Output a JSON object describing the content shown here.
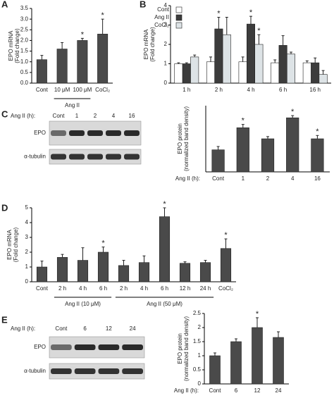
{
  "chart_data": [
    {
      "type": "bar",
      "panel": "A",
      "ylabel": [
        "EPO mRNA",
        "(Fold change)"
      ],
      "categories": [
        "Cont",
        "10 μM",
        "100 μM",
        "CoCl₂"
      ],
      "values": [
        1.1,
        1.6,
        2.0,
        2.3
      ],
      "errors": [
        0.2,
        0.3,
        0.1,
        0.7
      ],
      "color": "#4a4a4a",
      "ylim": [
        0,
        3.5
      ],
      "yticks": [
        {
          "value": 0,
          "label": "0.0"
        },
        0.5,
        {
          "value": 1,
          "label": "1.0"
        },
        1.5,
        {
          "value": 2,
          "label": "2.0"
        },
        2.5,
        {
          "value": 3,
          "label": "3.0"
        },
        3.5
      ],
      "groups": [
        {
          "label": "Ang II",
          "start": 1,
          "end": 2
        }
      ],
      "annotations": [
        {
          "text": "*",
          "category": 2
        },
        {
          "text": "*",
          "category": 3
        }
      ]
    },
    {
      "type": "bar",
      "panel": "B",
      "ylabel": [
        "EPO mRNA",
        "(Fold change)"
      ],
      "categories": [
        "1 h",
        "2 h",
        "4 h",
        "6 h",
        "16 h"
      ],
      "series": [
        {
          "name": "Cont",
          "color": "#ffffff",
          "values": [
            1.0,
            1.1,
            1.1,
            1.05,
            1.05
          ],
          "errors": [
            0.05,
            0.25,
            0.25,
            0.15,
            0.1
          ]
        },
        {
          "name": "Ang II",
          "color": "#3c3c3c",
          "values": [
            1.0,
            2.8,
            3.05,
            1.95,
            1.05
          ],
          "errors": [
            0.05,
            0.6,
            0.4,
            0.5,
            0.25
          ]
        },
        {
          "name": "CoCl₂",
          "color": "#dde3e6",
          "values": [
            1.35,
            2.5,
            2.0,
            1.5,
            0.45
          ],
          "errors": [
            0.1,
            0.9,
            0.5,
            0.1,
            0.2
          ]
        }
      ],
      "ylim": [
        0,
        4
      ],
      "yticks": [
        0,
        1,
        2,
        3,
        4
      ],
      "legend": "top-left",
      "annotations": [
        {
          "text": "*",
          "category": 1,
          "series": 1
        },
        {
          "text": "*",
          "category": 2,
          "series": 1
        },
        {
          "text": "*",
          "category": 2,
          "series": 2
        }
      ]
    },
    {
      "type": "bar",
      "panel": "C",
      "ylabel": [
        "EPO protein",
        "(normalized band density)"
      ],
      "blot": {
        "header": "Ang II (h):",
        "lanes": [
          "Cont",
          "1",
          "2",
          "4",
          "16"
        ],
        "rows": [
          "EPO",
          "α-tubulin"
        ]
      },
      "x_prefix": "Ang II (h):",
      "categories": [
        "Cont",
        "1",
        "2",
        "4",
        "16"
      ],
      "values": [
        1.0,
        2.0,
        1.5,
        2.45,
        1.5
      ],
      "errors": [
        0.15,
        0.15,
        0.1,
        0.1,
        0.15
      ],
      "color": "#4a4a4a",
      "ylim": [
        0,
        3
      ],
      "annotations": [
        {
          "text": "*",
          "category": 1
        },
        {
          "text": "*",
          "category": 3
        },
        {
          "text": "*",
          "category": 4
        }
      ]
    },
    {
      "type": "bar",
      "panel": "D",
      "ylabel": [
        "EPO mRNA",
        "(Fold change)"
      ],
      "categories": [
        "Cont",
        "2 h",
        "4 h",
        "6 h",
        "2 h",
        "4 h",
        "6 h",
        "12 h",
        "24 h",
        "CoCl₂"
      ],
      "values": [
        1.0,
        1.65,
        1.45,
        2.0,
        1.1,
        1.3,
        4.4,
        1.25,
        1.3,
        2.25
      ],
      "errors": [
        0.4,
        0.2,
        0.85,
        0.35,
        0.35,
        0.45,
        0.6,
        0.1,
        0.15,
        0.65
      ],
      "color": "#4a4a4a",
      "ylim": [
        0,
        5
      ],
      "yticks": [
        0,
        1,
        2,
        3,
        4,
        5
      ],
      "groups": [
        {
          "label": "Ang II (10 μM)",
          "start": 1,
          "end": 3
        },
        {
          "label": "Ang II (50 μM)",
          "start": 4,
          "end": 8
        }
      ],
      "annotations": [
        {
          "text": "*",
          "category": 3
        },
        {
          "text": "*",
          "category": 6
        },
        {
          "text": "*",
          "category": 9
        }
      ]
    },
    {
      "type": "bar",
      "panel": "E",
      "ylabel": [
        "EPO protein",
        "(normalized band density)"
      ],
      "blot": {
        "header": "Ang II (h):",
        "lanes": [
          "Cont",
          "6",
          "12",
          "24"
        ],
        "rows": [
          "EPO",
          "α-tubulin"
        ]
      },
      "x_prefix": "Ang II (h):",
      "categories": [
        "Cont",
        "6",
        "12",
        "24"
      ],
      "values": [
        1.0,
        1.5,
        2.0,
        1.65
      ],
      "errors": [
        0.1,
        0.1,
        0.35,
        0.2
      ],
      "color": "#4a4a4a",
      "ylim": [
        0,
        2.5
      ],
      "yticks": [
        0,
        0.5,
        1,
        1.5,
        2,
        2.5
      ],
      "annotations": [
        {
          "text": "*",
          "category": 2
        }
      ]
    }
  ]
}
